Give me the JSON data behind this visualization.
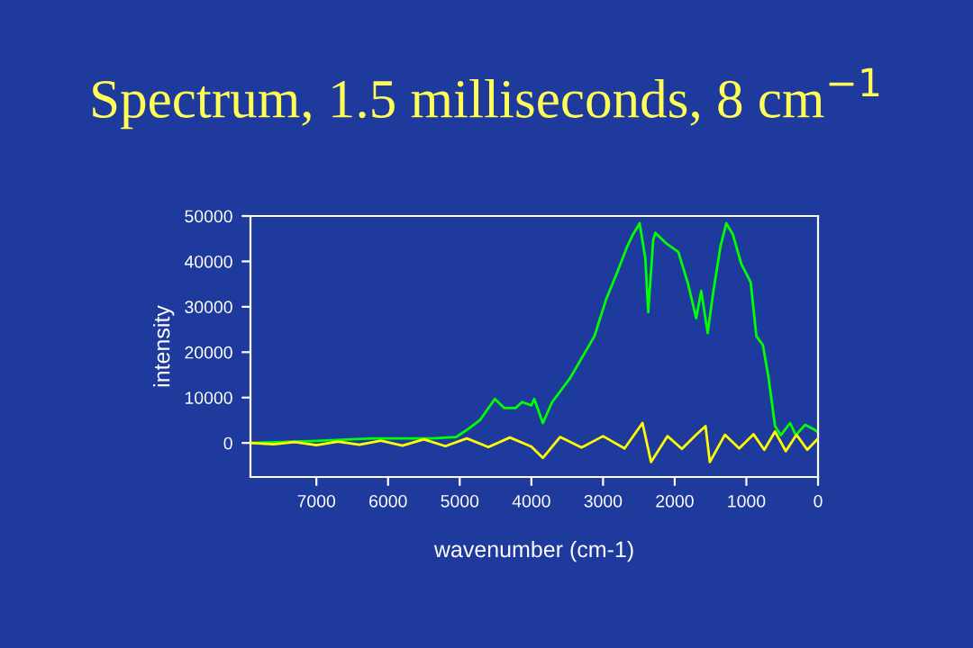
{
  "chart_data": {
    "type": "line",
    "title": "Spectrum, 1.5 milliseconds, 8 cm$^{−1}$",
    "xlabel": "wavenumber (cm-1)",
    "ylabel": "intensity",
    "xlim": [
      7920,
      0
    ],
    "xticks": [
      7000,
      6000,
      5000,
      4000,
      3000,
      2000,
      1000,
      0
    ],
    "ylim": [
      -7500,
      50000
    ],
    "yticks": [
      0,
      10000,
      20000,
      30000,
      40000,
      50000
    ],
    "grid": false,
    "legend": false,
    "marker": "none",
    "line_style": "solid",
    "series": [
      {
        "color": "#00ff00",
        "x": [
          7920,
          7070,
          6230,
          5390,
          5050,
          4890,
          4720,
          4510,
          4380,
          4220,
          4130,
          4000,
          3960,
          3840,
          3710,
          3460,
          3290,
          3120,
          2960,
          2790,
          2660,
          2580,
          2490,
          2410,
          2370,
          2300,
          2270,
          2120,
          1950,
          1820,
          1700,
          1630,
          1540,
          1460,
          1360,
          1280,
          1190,
          1070,
          940,
          860,
          770,
          690,
          600,
          520,
          390,
          310,
          180,
          60,
          0
        ],
        "values": [
          0,
          400,
          1000,
          1000,
          1300,
          3000,
          5000,
          9700,
          7700,
          7700,
          9000,
          8300,
          9700,
          4400,
          9000,
          14300,
          18900,
          23500,
          31500,
          38100,
          43400,
          46000,
          48400,
          40700,
          28800,
          44700,
          46300,
          44000,
          42100,
          35400,
          27500,
          33500,
          24200,
          33500,
          43400,
          48400,
          46000,
          39400,
          35400,
          23500,
          21600,
          14300,
          3700,
          1700,
          4400,
          1700,
          4000,
          3000,
          2400
        ]
      },
      {
        "color": "#ffff00",
        "x": [
          7920,
          7600,
          7300,
          7000,
          6700,
          6400,
          6100,
          5800,
          5500,
          5200,
          4900,
          4600,
          4300,
          4000,
          3840,
          3600,
          3300,
          3000,
          2700,
          2450,
          2330,
          2100,
          1900,
          1700,
          1570,
          1510,
          1300,
          1100,
          900,
          750,
          600,
          450,
          300,
          150,
          0
        ],
        "values": [
          0,
          -300,
          200,
          -500,
          300,
          -400,
          500,
          -600,
          800,
          -700,
          1000,
          -900,
          1200,
          -800,
          -3300,
          1300,
          -1000,
          1500,
          -1200,
          4400,
          -4200,
          1500,
          -1300,
          1800,
          3700,
          -4200,
          1800,
          -1200,
          1900,
          -1500,
          2500,
          -1800,
          1800,
          -1500,
          1000
        ]
      }
    ]
  }
}
